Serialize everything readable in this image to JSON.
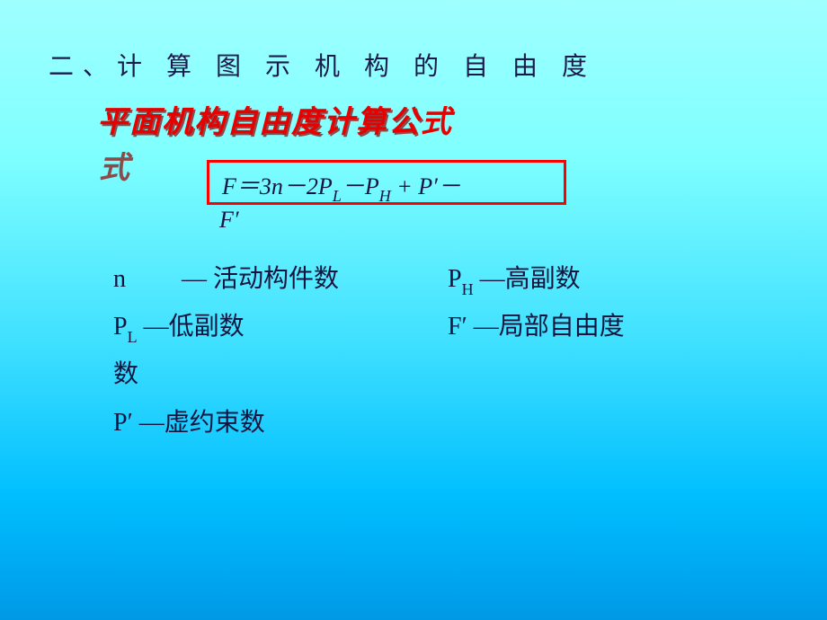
{
  "heading": "二、计 算 图 示 机 构 的 自 由 度",
  "subtitle": "平面机构自由度计算公式",
  "formula": {
    "line1_html": "<span style='font-style:italic'>F</span>＝3<span style='font-style:italic'>n</span>－2<span style='font-style:italic'>P</span><span class='sub' style='font-style:italic'>L</span>－<span style='font-style:italic'>P</span><span class='sub' style='font-style:italic'>H</span> + <span style='font-style:italic'>P′</span>－",
    "line2_html": "<span style='font-style:italic'>F′</span>"
  },
  "defs": {
    "n_label": "n",
    "n_text": "— 活动构件数",
    "ph_label_html": "P<span class='sub'>H</span>",
    "ph_text": "—高副数",
    "pl_label_html": "P<span class='sub'>L</span>",
    "pl_text": "—低副数",
    "fp_label": "F′",
    "fp_text": "—局部自由度",
    "fp_text2": "数",
    "pp_label": "P′",
    "pp_text": "—虚约束数"
  },
  "colors": {
    "heading": "#1a1a4d",
    "subtitle_main": "#e60000",
    "subtitle_shadow": "#8b4b4b",
    "formula_border": "#ff0000",
    "text": "#15153f",
    "bg_top": "#9fffff",
    "bg_bottom": "#0099e6"
  },
  "fontsizes": {
    "heading": 28,
    "subtitle": 34,
    "formula": 26,
    "defs": 28
  }
}
